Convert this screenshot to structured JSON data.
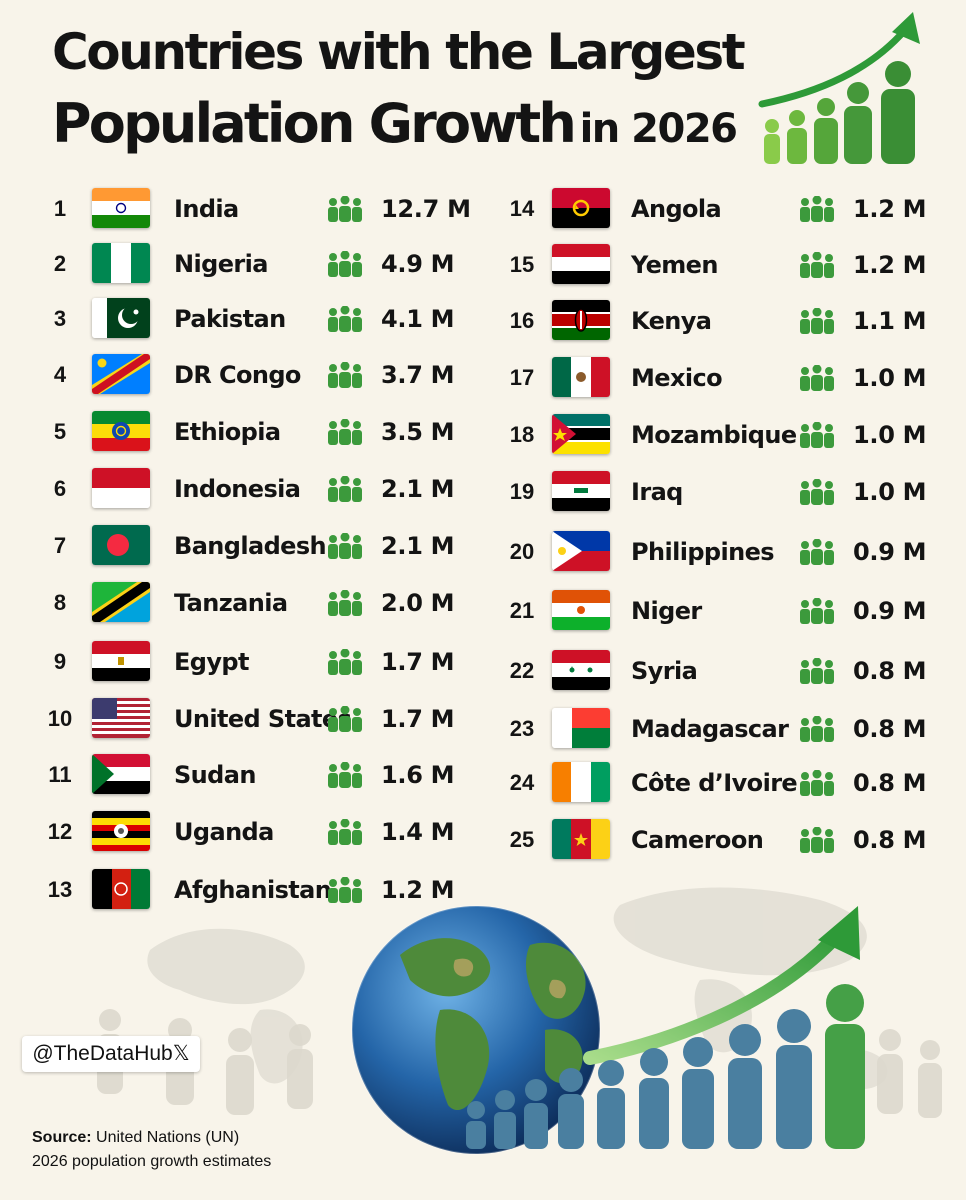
{
  "title": {
    "line1": "Countries with the Largest",
    "line2_main": "Population Growth",
    "line2_suffix": "in 2026"
  },
  "chart_data": {
    "type": "table",
    "title": "Countries with the Largest Population Growth in 2026",
    "unit": "M",
    "rows": [
      {
        "rank": "1",
        "country": "India",
        "value": "12.7 M",
        "flag": "india-flag"
      },
      {
        "rank": "2",
        "country": "Nigeria",
        "value": "4.9 M",
        "flag": "nigeria-flag"
      },
      {
        "rank": "3",
        "country": "Pakistan",
        "value": "4.1 M",
        "flag": "pakistan-flag"
      },
      {
        "rank": "4",
        "country": "DR Congo",
        "value": "3.7 M",
        "flag": "dr-congo-flag"
      },
      {
        "rank": "5",
        "country": "Ethiopia",
        "value": "3.5 M",
        "flag": "ethiopia-flag"
      },
      {
        "rank": "6",
        "country": "Indonesia",
        "value": "2.1 M",
        "flag": "indonesia-flag"
      },
      {
        "rank": "7",
        "country": "Bangladesh",
        "value": "2.1 M",
        "flag": "bangladesh-flag"
      },
      {
        "rank": "8",
        "country": "Tanzania",
        "value": "2.0 M",
        "flag": "tanzania-flag"
      },
      {
        "rank": "9",
        "country": "Egypt",
        "value": "1.7 M",
        "flag": "egypt-flag"
      },
      {
        "rank": "10",
        "country": "United States",
        "value": "1.7 M",
        "flag": "united-states-flag"
      },
      {
        "rank": "11",
        "country": "Sudan",
        "value": "1.6 M",
        "flag": "sudan-flag"
      },
      {
        "rank": "12",
        "country": "Uganda",
        "value": "1.4 M",
        "flag": "uganda-flag"
      },
      {
        "rank": "13",
        "country": "Afghanistan",
        "value": "1.2 M",
        "flag": "afghanistan-flag"
      },
      {
        "rank": "14",
        "country": "Angola",
        "value": "1.2 M",
        "flag": "angola-flag"
      },
      {
        "rank": "15",
        "country": "Yemen",
        "value": "1.2 M",
        "flag": "yemen-flag"
      },
      {
        "rank": "16",
        "country": "Kenya",
        "value": "1.1 M",
        "flag": "kenya-flag"
      },
      {
        "rank": "17",
        "country": "Mexico",
        "value": "1.0 M",
        "flag": "mexico-flag"
      },
      {
        "rank": "18",
        "country": "Mozambique",
        "value": "1.0 M",
        "flag": "mozambique-flag"
      },
      {
        "rank": "19",
        "country": "Iraq",
        "value": "1.0 M",
        "flag": "iraq-flag"
      },
      {
        "rank": "20",
        "country": "Philippines",
        "value": "0.9 M",
        "flag": "philippines-flag"
      },
      {
        "rank": "21",
        "country": "Niger",
        "value": "0.9 M",
        "flag": "niger-flag"
      },
      {
        "rank": "22",
        "country": "Syria",
        "value": "0.8 M",
        "flag": "syria-flag"
      },
      {
        "rank": "23",
        "country": "Madagascar",
        "value": "0.8 M",
        "flag": "madagascar-flag"
      },
      {
        "rank": "24",
        "country": "Côte d’Ivoire",
        "value": "0.8 M",
        "flag": "cote-divoire-flag"
      },
      {
        "rank": "25",
        "country": "Cameroon",
        "value": "0.8 M",
        "flag": "cameroon-flag"
      }
    ]
  },
  "colors": {
    "background": "#f8f4ea",
    "people_icon": "#3c9a3c",
    "arrow": "#3aa53a",
    "figure_blue": "#4a7fa0",
    "figure_green": "#45a047"
  },
  "icons": {
    "row_icon": "people-group-icon",
    "title_icon": "growth-arrow-people-icon",
    "illustration": "globe-and-growing-people-illustration",
    "x_logo": "x-logo-icon"
  },
  "handle": {
    "name": "@TheDataHub",
    "logo": "𝕏"
  },
  "source": {
    "label": "Source:",
    "org": "United Nations (UN)",
    "note": "2026 population growth estimates"
  }
}
